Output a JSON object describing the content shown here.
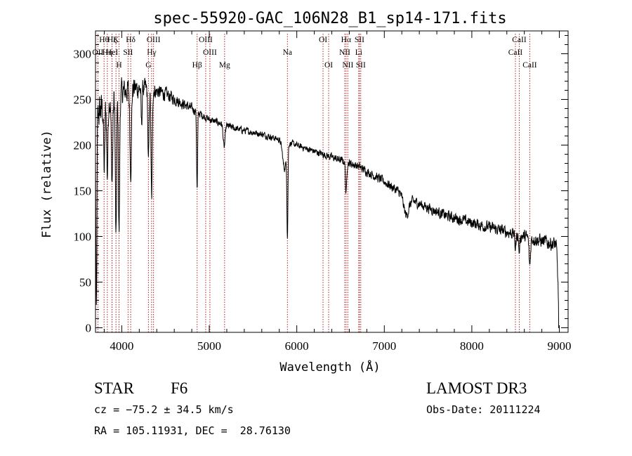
{
  "chart_data": {
    "type": "line",
    "title": "spec-55920-GAC_106N28_B1_sp14-171.fits",
    "xlabel": "Wavelength (Å)",
    "ylabel": "Flux (relative)",
    "xlim": [
      3700,
      9100
    ],
    "ylim": [
      -5,
      325
    ],
    "xticks": [
      4000,
      5000,
      6000,
      7000,
      8000,
      9000
    ],
    "yticks": [
      0,
      50,
      100,
      150,
      200,
      250,
      300
    ],
    "x_minor_step": 200,
    "y_minor_step": 10,
    "continuum": [
      [
        3700,
        230
      ],
      [
        3850,
        250
      ],
      [
        4100,
        262
      ],
      [
        4300,
        262
      ],
      [
        4500,
        256
      ],
      [
        4800,
        240
      ],
      [
        5000,
        228
      ],
      [
        5300,
        218
      ],
      [
        5600,
        212
      ],
      [
        5900,
        203
      ],
      [
        6300,
        190
      ],
      [
        6700,
        177
      ],
      [
        7000,
        160
      ],
      [
        7300,
        140
      ],
      [
        7700,
        123
      ],
      [
        8000,
        115
      ],
      [
        8400,
        105
      ],
      [
        8800,
        95
      ],
      [
        9000,
        90
      ]
    ],
    "absorption_features": [
      {
        "center": 3710,
        "depth": 220,
        "width": 8
      },
      {
        "center": 3800,
        "depth": 70,
        "width": 10
      },
      {
        "center": 3835,
        "depth": 80,
        "width": 10
      },
      {
        "center": 3889,
        "depth": 90,
        "width": 12
      },
      {
        "center": 3934,
        "depth": 160,
        "width": 10
      },
      {
        "center": 3969,
        "depth": 150,
        "width": 10
      },
      {
        "center": 4102,
        "depth": 90,
        "width": 12
      },
      {
        "center": 4226,
        "depth": 40,
        "width": 8
      },
      {
        "center": 4305,
        "depth": 80,
        "width": 10
      },
      {
        "center": 4341,
        "depth": 120,
        "width": 10
      },
      {
        "center": 4861,
        "depth": 85,
        "width": 8
      },
      {
        "center": 5170,
        "depth": 25,
        "width": 15
      },
      {
        "center": 5893,
        "depth": 95,
        "width": 8
      },
      {
        "center": 5860,
        "depth": 30,
        "width": 30
      },
      {
        "center": 6563,
        "depth": 35,
        "width": 10
      },
      {
        "center": 7250,
        "depth": 20,
        "width": 40
      },
      {
        "center": 8498,
        "depth": 15,
        "width": 10
      },
      {
        "center": 8542,
        "depth": 18,
        "width": 10
      },
      {
        "center": 8662,
        "depth": 30,
        "width": 12
      },
      {
        "center": 9000,
        "depth": 80,
        "width": 20
      }
    ],
    "noise_amplitude": [
      [
        3700,
        30
      ],
      [
        4400,
        12
      ],
      [
        5000,
        6
      ],
      [
        6000,
        5
      ],
      [
        7000,
        8
      ],
      [
        8500,
        10
      ],
      [
        9000,
        12
      ]
    ],
    "spectral_lines": [
      {
        "label": "OII",
        "wave": 3727,
        "row": 1
      },
      {
        "label": "Hθ",
        "wave": 3798,
        "row": 0
      },
      {
        "label": "Hη",
        "wave": 3835,
        "row": 1
      },
      {
        "label": "HeI",
        "wave": 3889,
        "row": 1
      },
      {
        "label": "Hζ",
        "wave": 3889,
        "row": 0
      },
      {
        "label": "K",
        "wave": 3934,
        "row": 0
      },
      {
        "label": "H",
        "wave": 3969,
        "row": 2
      },
      {
        "label": "SII",
        "wave": 4072,
        "row": 1
      },
      {
        "label": "Hδ",
        "wave": 4102,
        "row": 0
      },
      {
        "label": "OIII",
        "wave": 4363,
        "row": 0
      },
      {
        "label": "Hγ",
        "wave": 4341,
        "row": 1
      },
      {
        "label": "G",
        "wave": 4305,
        "row": 2
      },
      {
        "label": "Hβ",
        "wave": 4861,
        "row": 2
      },
      {
        "label": "OIII",
        "wave": 4959,
        "row": 0
      },
      {
        "label": "OIII",
        "wave": 5007,
        "row": 1
      },
      {
        "label": "Mg",
        "wave": 5175,
        "row": 2
      },
      {
        "label": "Na",
        "wave": 5893,
        "row": 1
      },
      {
        "label": "OI",
        "wave": 6300,
        "row": 0
      },
      {
        "label": "OI",
        "wave": 6364,
        "row": 2
      },
      {
        "label": "Hα",
        "wave": 6563,
        "row": 0
      },
      {
        "label": "NII",
        "wave": 6548,
        "row": 1
      },
      {
        "label": "NII",
        "wave": 6583,
        "row": 2
      },
      {
        "label": "SII",
        "wave": 6716,
        "row": 0
      },
      {
        "label": "SII",
        "wave": 6731,
        "row": 2
      },
      {
        "label": "Li",
        "wave": 6708,
        "row": 1
      },
      {
        "label": "CaII",
        "wave": 8498,
        "row": 1
      },
      {
        "label": "CaII",
        "wave": 8542,
        "row": 0
      },
      {
        "label": "CaII",
        "wave": 8662,
        "row": 2
      }
    ]
  },
  "info": {
    "object_class": "STAR",
    "subclass": "F6",
    "survey": "LAMOST DR3",
    "redshift": "cz = −75.2 ± 34.5 km/s",
    "obs_date": "Obs-Date: 20111224",
    "coords": "RA = 105.11931, DEC =  28.76130"
  },
  "colors": {
    "line_marker": "#b22222",
    "spectrum": "#000000"
  }
}
